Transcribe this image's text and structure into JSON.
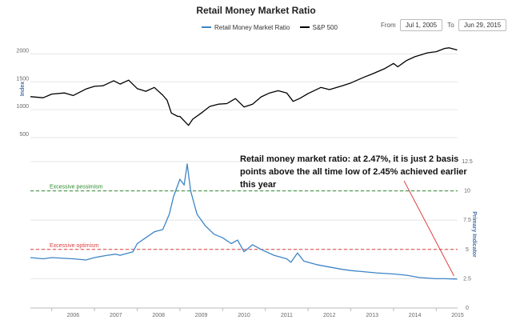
{
  "chart_data": {
    "type": "line",
    "title": "Retail Money Market Ratio",
    "legend": [
      "Retail Money Market Ratio",
      "S&P 500"
    ],
    "date_range": {
      "from_label": "From",
      "from": "Jul 1, 2005",
      "to_label": "To",
      "to": "Jun 29, 2015"
    },
    "x_ticks": [
      "2006",
      "2007",
      "2008",
      "2009",
      "2010",
      "2011",
      "2012",
      "2013",
      "2014",
      "2015"
    ],
    "upper_panel": {
      "ylabel": "Index",
      "ylim": [
        500,
        2250
      ],
      "y_ticks": [
        "500",
        "1000",
        "1500",
        "2000"
      ],
      "series": [
        {
          "name": "S&P 500",
          "color": "#000000",
          "x": [
            2005.5,
            2005.8,
            2006.0,
            2006.3,
            2006.5,
            2006.8,
            2007.0,
            2007.2,
            2007.45,
            2007.6,
            2007.8,
            2008.0,
            2008.2,
            2008.4,
            2008.6,
            2008.7,
            2008.8,
            2008.95,
            2009.0,
            2009.1,
            2009.2,
            2009.3,
            2009.5,
            2009.7,
            2009.9,
            2010.1,
            2010.3,
            2010.5,
            2010.7,
            2010.9,
            2011.1,
            2011.3,
            2011.5,
            2011.65,
            2011.8,
            2012.0,
            2012.3,
            2012.5,
            2012.8,
            2013.0,
            2013.3,
            2013.5,
            2013.8,
            2014.0,
            2014.1,
            2014.3,
            2014.5,
            2014.8,
            2015.0,
            2015.2,
            2015.3,
            2015.49
          ],
          "values": [
            1235,
            1215,
            1280,
            1300,
            1255,
            1370,
            1420,
            1430,
            1520,
            1460,
            1530,
            1380,
            1330,
            1400,
            1260,
            1170,
            940,
            880,
            880,
            800,
            720,
            830,
            940,
            1060,
            1100,
            1110,
            1200,
            1050,
            1100,
            1230,
            1300,
            1340,
            1300,
            1150,
            1200,
            1290,
            1400,
            1360,
            1430,
            1480,
            1580,
            1640,
            1740,
            1830,
            1770,
            1880,
            1950,
            2020,
            2040,
            2100,
            2110,
            2070
          ]
        }
      ]
    },
    "lower_panel": {
      "ylabel": "Primary Indicator",
      "ylim": [
        0,
        12.5
      ],
      "y_ticks": [
        "0",
        "2.5",
        "5",
        "7.5",
        "10",
        "12.5"
      ],
      "series": [
        {
          "name": "Retail Money Market Ratio",
          "color": "#3d85c6",
          "x": [
            2005.5,
            2005.8,
            2006.0,
            2006.5,
            2006.8,
            2007.0,
            2007.3,
            2007.5,
            2007.6,
            2007.9,
            2008.0,
            2008.2,
            2008.4,
            2008.6,
            2008.75,
            2008.85,
            2009.0,
            2009.1,
            2009.17,
            2009.25,
            2009.4,
            2009.6,
            2009.8,
            2010.0,
            2010.2,
            2010.35,
            2010.5,
            2010.7,
            2010.9,
            2011.2,
            2011.5,
            2011.6,
            2011.75,
            2011.9,
            2012.2,
            2012.5,
            2012.8,
            2013.0,
            2013.3,
            2013.6,
            2014.0,
            2014.3,
            2014.6,
            2015.0,
            2015.2,
            2015.49
          ],
          "values": [
            4.3,
            4.2,
            4.3,
            4.2,
            4.1,
            4.3,
            4.5,
            4.6,
            4.5,
            4.8,
            5.5,
            6.0,
            6.5,
            6.7,
            8.0,
            9.5,
            11.0,
            10.5,
            12.3,
            10.0,
            8.0,
            7.0,
            6.3,
            6.0,
            5.5,
            5.8,
            4.8,
            5.4,
            5.0,
            4.5,
            4.2,
            3.9,
            4.7,
            4.0,
            3.7,
            3.5,
            3.3,
            3.2,
            3.1,
            3.0,
            2.9,
            2.8,
            2.6,
            2.5,
            2.5,
            2.47
          ]
        }
      ],
      "thresholds": [
        {
          "label": "Excessive pessimism",
          "value": 10,
          "color": "#2e8b2e"
        },
        {
          "label": "Excessive optimism",
          "value": 5,
          "color": "#e04040"
        }
      ]
    },
    "annotation": "Retail money market ratio: at 2.47%, it is just 2 basis points above the all time low of 2.45% achieved earlier this year",
    "grid": true
  }
}
